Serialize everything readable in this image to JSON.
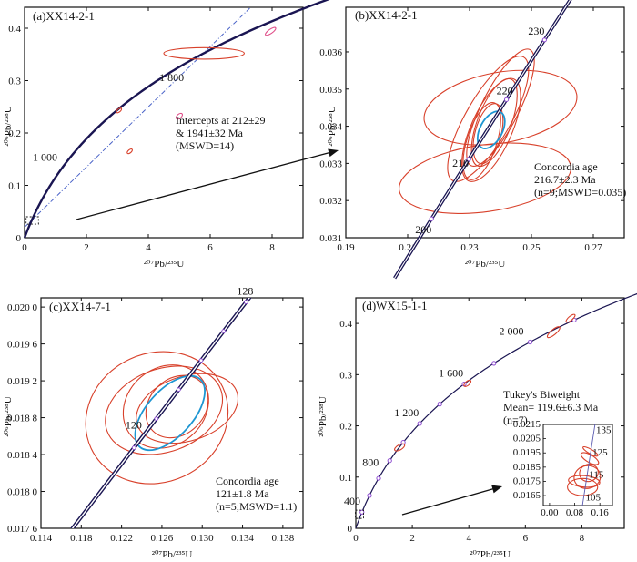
{
  "figure": {
    "panels": [
      {
        "id": "a",
        "title": "(a)XX14-2-1",
        "xlabel": "²⁰⁷Pb/²³⁵U",
        "ylabel": "²⁰⁶Pb/²³⁸U",
        "annotation_lines": [
          "Intercepts at 212±29",
          "& 1941±32  Ma",
          "(MSWD=14)"
        ],
        "age_labels": [
          "1 000",
          "1 800"
        ]
      },
      {
        "id": "b",
        "title": "(b)XX14-2-1",
        "xlabel": "²⁰⁷Pb/²³⁵U",
        "ylabel": "²⁰⁶Pb/²³⁸U",
        "annotation_lines": [
          "Concordia age",
          "216.7±2.3 Ma",
          "(n=9;MSWD=0.035)"
        ],
        "age_labels": [
          "200",
          "210",
          "220",
          "230"
        ]
      },
      {
        "id": "c",
        "title": "(c)XX14-7-1",
        "xlabel": "²⁰⁷Pb/²³⁵U",
        "ylabel": "²⁰⁶Pb/²³⁸U",
        "annotation_lines": [
          "Concordia age",
          "121±1.8 Ma",
          "(n=5;MSWD=1.1)"
        ],
        "age_labels": [
          "120",
          "128"
        ]
      },
      {
        "id": "d",
        "title": "(d)WX15-1-1",
        "xlabel": "²⁰⁷Pb/²³⁵U",
        "ylabel": "²⁰⁶Pb/²³⁸U",
        "annotation_lines": [
          "Tukey's Biweight",
          "Mean= 119.6±6.3 Ma",
          "(n=7)"
        ],
        "age_labels": [
          "400",
          "800",
          "1 200",
          "1 600",
          "2 000"
        ],
        "inset_age_labels": [
          "105",
          "115",
          "125",
          "135"
        ]
      }
    ]
  },
  "colors": {
    "concordia": "#1a1552",
    "ellipse_red": "#d8402a",
    "ellipse_blue": "#1e96d2",
    "discordia": "#4a63c8",
    "marker": "#8c4ad0",
    "pink": "#e0508a",
    "axes": "#111111"
  },
  "chart_data": [
    {
      "panel": "a",
      "type": "scatter",
      "subtype": "U-Pb concordia diagram",
      "title": "(a)XX14-2-1",
      "xlabel": "²⁰⁷Pb/²³⁵U",
      "ylabel": "²⁰⁶Pb/²³⁸U",
      "xlim": [
        0,
        9
      ],
      "ylim": [
        0,
        0.44
      ],
      "xticks": [
        0,
        2,
        4,
        6,
        8
      ],
      "yticks": [
        0,
        0.1,
        0.2,
        0.3,
        0.4
      ],
      "xtick_labels": [
        "0",
        "2",
        "4",
        "6",
        "8"
      ],
      "ytick_labels": [
        "0",
        "0.1",
        "0.2",
        "0.3",
        "0.4"
      ],
      "concordia_age_range_ma": [
        0,
        4000
      ],
      "age_labels": [
        {
          "text": "1 000",
          "age_ma": 1000
        },
        {
          "text": "1 800",
          "age_ma": 1800
        }
      ],
      "discordia": {
        "lower_intercept_ma": 212,
        "upper_intercept_ma": 1941,
        "x_end": 8.3
      },
      "ellipses": [
        {
          "x": 5.8,
          "y": 0.352,
          "rx": 1.3,
          "ry": 0.011,
          "color": "red",
          "angle": 0
        },
        {
          "x": 7.95,
          "y": 0.394,
          "rx": 0.2,
          "ry": 0.004,
          "color": "pink",
          "angle": -35
        },
        {
          "x": 5.0,
          "y": 0.232,
          "rx": 0.12,
          "ry": 0.004,
          "color": "pink",
          "angle": -40
        },
        {
          "x": 3.05,
          "y": 0.243,
          "rx": 0.1,
          "ry": 0.003,
          "color": "red",
          "angle": -40
        },
        {
          "x": 3.4,
          "y": 0.165,
          "rx": 0.1,
          "ry": 0.003,
          "color": "red",
          "angle": -40
        }
      ],
      "zoom_box": {
        "x": [
          0.05,
          0.45
        ],
        "y": [
          0.026,
          0.04
        ]
      }
    },
    {
      "panel": "b",
      "type": "scatter",
      "subtype": "U-Pb concordia diagram",
      "title": "(b)XX14-2-1",
      "xlabel": "²⁰⁷Pb/²³⁵U",
      "ylabel": "²⁰⁶Pb/²³⁸U",
      "xlim": [
        0.19,
        0.28
      ],
      "ylim": [
        0.031,
        0.0372
      ],
      "xticks": [
        0.19,
        0.21,
        0.23,
        0.25,
        0.27
      ],
      "yticks": [
        0.031,
        0.032,
        0.033,
        0.034,
        0.035,
        0.036
      ],
      "xtick_labels": [
        "0.19",
        "0.21",
        "0.23",
        "0.25",
        "0.27"
      ],
      "ytick_labels": [
        "0.031",
        "0.032",
        "0.033",
        "0.034",
        "0.035",
        "0.036"
      ],
      "concordia_age_range_ma": [
        190,
        240
      ],
      "age_labels": [
        {
          "text": "200",
          "age_ma": 200
        },
        {
          "text": "210",
          "age_ma": 210
        },
        {
          "text": "220",
          "age_ma": 220
        },
        {
          "text": "230",
          "age_ma": 230
        }
      ],
      "ellipses": [
        {
          "x": 0.235,
          "y": 0.0326,
          "rx": 0.028,
          "ry": 0.0009,
          "color": "red",
          "angle": -8
        },
        {
          "x": 0.24,
          "y": 0.0345,
          "rx": 0.025,
          "ry": 0.00095,
          "color": "red",
          "angle": -10
        },
        {
          "x": 0.236,
          "y": 0.0342,
          "rx": 0.023,
          "ry": 0.0006,
          "color": "red",
          "angle": -60
        },
        {
          "x": 0.24,
          "y": 0.0345,
          "rx": 0.021,
          "ry": 0.0005,
          "color": "red",
          "angle": -63
        },
        {
          "x": 0.237,
          "y": 0.0339,
          "rx": 0.018,
          "ry": 0.00055,
          "color": "red",
          "angle": -66
        },
        {
          "x": 0.238,
          "y": 0.0341,
          "rx": 0.015,
          "ry": 0.00045,
          "color": "red",
          "angle": -69
        },
        {
          "x": 0.234,
          "y": 0.0336,
          "rx": 0.013,
          "ry": 0.0004,
          "color": "red",
          "angle": -72
        },
        {
          "x": 0.236,
          "y": 0.0338,
          "rx": 0.01,
          "ry": 0.00035,
          "color": "red",
          "angle": -75
        },
        {
          "x": 0.237,
          "y": 0.0339,
          "rx": 0.0065,
          "ry": 0.0003,
          "color": "blue",
          "angle": -62
        }
      ]
    },
    {
      "panel": "c",
      "type": "scatter",
      "subtype": "U-Pb concordia diagram",
      "title": "(c)XX14-7-1",
      "xlabel": "²⁰⁷Pb/²³⁵U",
      "ylabel": "²⁰⁶Pb/²³⁸U",
      "xlim": [
        0.114,
        0.14
      ],
      "ylim": [
        0.0176,
        0.0201
      ],
      "xticks": [
        0.114,
        0.118,
        0.122,
        0.126,
        0.13,
        0.134,
        0.138
      ],
      "yticks": [
        0.0176,
        0.018,
        0.0184,
        0.0188,
        0.0192,
        0.0196,
        0.02
      ],
      "xtick_labels": [
        "0.114",
        "0.118",
        "0.122",
        "0.126",
        "0.130",
        "0.134",
        "0.138"
      ],
      "ytick_labels": [
        "0.017 6",
        "0.018 0",
        "0.018 4",
        "0.018 8",
        "0.019 2",
        "0.019 6",
        "0.020 0"
      ],
      "concordia_age_range_ma": [
        110,
        130
      ],
      "age_labels": [
        {
          "text": "120",
          "age_ma": 120
        },
        {
          "text": "128",
          "age_ma": 128
        }
      ],
      "ellipses": [
        {
          "x": 0.1255,
          "y": 0.0188,
          "rx": 0.0072,
          "ry": 0.0007,
          "color": "red",
          "angle": -25
        },
        {
          "x": 0.1262,
          "y": 0.01888,
          "rx": 0.006,
          "ry": 0.00045,
          "color": "red",
          "angle": -20
        },
        {
          "x": 0.1285,
          "y": 0.0189,
          "rx": 0.0052,
          "ry": 0.00035,
          "color": "red",
          "angle": -18
        },
        {
          "x": 0.1264,
          "y": 0.01892,
          "rx": 0.0045,
          "ry": 0.00042,
          "color": "red",
          "angle": -40
        },
        {
          "x": 0.1275,
          "y": 0.01892,
          "rx": 0.0034,
          "ry": 0.0003,
          "color": "red",
          "angle": -45
        },
        {
          "x": 0.1268,
          "y": 0.01885,
          "rx": 0.0045,
          "ry": 0.00025,
          "color": "blue",
          "angle": -48
        }
      ]
    },
    {
      "panel": "d",
      "type": "scatter",
      "subtype": "U-Pb concordia diagram",
      "title": "(d)WX15-1-1",
      "xlabel": "²⁰⁷Pb/²³⁵U",
      "ylabel": "²⁰⁶Pb/²³⁸U",
      "xlim": [
        0,
        9.5
      ],
      "ylim": [
        0,
        0.45
      ],
      "xticks": [
        0,
        2,
        4,
        6,
        8
      ],
      "yticks": [
        0,
        0.1,
        0.2,
        0.3,
        0.4
      ],
      "xtick_labels": [
        "0",
        "2",
        "4",
        "6",
        "8"
      ],
      "ytick_labels": [
        "0",
        "0.1",
        "0.2",
        "0.3",
        "0.4"
      ],
      "concordia_age_range_ma": [
        0,
        3000
      ],
      "concordia_markers_ma": [
        200,
        400,
        600,
        800,
        1000,
        1200,
        1400,
        1600,
        1800,
        2000,
        2200
      ],
      "age_labels": [
        {
          "text": "400",
          "age_ma": 400
        },
        {
          "text": "800",
          "age_ma": 800
        },
        {
          "text": "1 200",
          "age_ma": 1200
        },
        {
          "text": "1 600",
          "age_ma": 1600
        },
        {
          "text": "2 000",
          "age_ma": 2000
        }
      ],
      "ellipses": [
        {
          "x": 1.55,
          "y": 0.158,
          "rx": 0.2,
          "ry": 0.005,
          "color": "red",
          "angle": -30
        },
        {
          "x": 3.95,
          "y": 0.283,
          "rx": 0.15,
          "ry": 0.004,
          "color": "red",
          "angle": -40
        },
        {
          "x": 7.0,
          "y": 0.383,
          "rx": 0.28,
          "ry": 0.005,
          "color": "red",
          "angle": -40
        },
        {
          "x": 7.6,
          "y": 0.41,
          "rx": 0.2,
          "ry": 0.004,
          "color": "red",
          "angle": -40
        }
      ],
      "zoom_box": {
        "x": [
          0.05,
          0.4
        ],
        "y": [
          0.012,
          0.03
        ]
      },
      "inset": {
        "xlim": [
          -0.02,
          0.2
        ],
        "ylim": [
          0.0158,
          0.0215
        ],
        "xticks": [
          0.0,
          0.08,
          0.16
        ],
        "yticks": [
          0.0165,
          0.0175,
          0.0185,
          0.0195,
          0.0205,
          0.0215
        ],
        "xtick_labels": [
          "0.00",
          "0.08",
          "0.16"
        ],
        "ytick_labels": [
          "0.0165",
          "0.0175",
          "0.0185",
          "0.0195",
          "0.0205",
          "0.0215"
        ],
        "age_labels": [
          {
            "text": "105",
            "age_ma": 105
          },
          {
            "text": "115",
            "age_ma": 115
          },
          {
            "text": "125",
            "age_ma": 125
          },
          {
            "text": "135",
            "age_ma": 135
          }
        ],
        "ellipses": [
          {
            "x": 0.105,
            "y": 0.0171,
            "rx": 0.048,
            "ry": 0.0006,
            "color": "red",
            "angle": 0
          },
          {
            "x": 0.12,
            "y": 0.0178,
            "rx": 0.042,
            "ry": 0.0008,
            "color": "red",
            "angle": -10
          },
          {
            "x": 0.11,
            "y": 0.0175,
            "rx": 0.05,
            "ry": 0.0004,
            "color": "red",
            "angle": 5
          },
          {
            "x": 0.125,
            "y": 0.0181,
            "rx": 0.03,
            "ry": 0.0006,
            "color": "red",
            "angle": -25
          },
          {
            "x": 0.128,
            "y": 0.0191,
            "rx": 0.012,
            "ry": 0.0007,
            "color": "red",
            "angle": -60
          },
          {
            "x": 0.13,
            "y": 0.0196,
            "rx": 0.007,
            "ry": 0.0006,
            "color": "red",
            "angle": -60
          }
        ]
      }
    }
  ]
}
